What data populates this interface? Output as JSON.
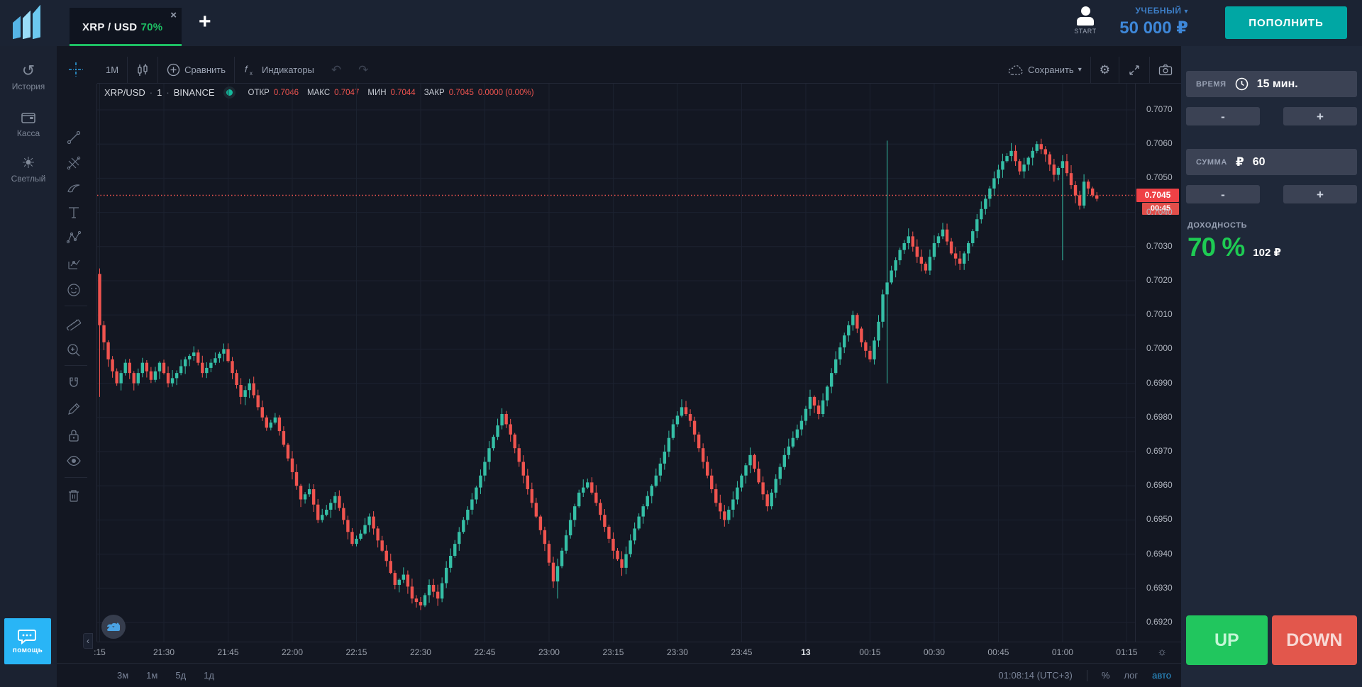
{
  "header": {
    "tab": {
      "symbol": "XRP / USD",
      "payout": "70%"
    },
    "account": {
      "avatar_label": "START",
      "type": "УЧЕБНЫЙ",
      "balance": "50 000 ₽",
      "deposit": "ПОПОЛНИТЬ"
    }
  },
  "icons": {
    "close": "×",
    "add": "+",
    "caret_down": "▾",
    "undo": "↶",
    "redo": "↷",
    "gear": "⚙",
    "sun_axis": "☼",
    "history": "↺",
    "theme_sun": "☀",
    "collapse_left": "‹",
    "dot_sep": "·"
  },
  "sidebar": {
    "items": [
      {
        "label": "История",
        "icon": "history-icon"
      },
      {
        "label": "Касса",
        "icon": "wallet-icon"
      },
      {
        "label": "Светлый",
        "icon": "theme-icon"
      }
    ],
    "help": "помощь"
  },
  "chart": {
    "toolbar": {
      "interval": "1M",
      "compare": "Сравнить",
      "indicators": "Индикаторы",
      "save": "Сохранить"
    },
    "legend": {
      "symbol": "XRP/USD",
      "interval": "1",
      "exchange": "BINANCE",
      "open_label": "ОТКР",
      "open": "0.7046",
      "high_label": "МАКС",
      "high": "0.7047",
      "low_label": "МИН",
      "low": "0.7044",
      "close_label": "ЗАКР",
      "close": "0.7045",
      "change": "0.0000 (0.00%)"
    },
    "ranges": [
      "3м",
      "1м",
      "5д",
      "1д"
    ],
    "clock": "01:08:14 (UTC+3)",
    "axis_buttons": [
      "%",
      "лог",
      "авто"
    ]
  },
  "trade_panel": {
    "time": {
      "label": "ВРЕМЯ",
      "value": "15 мин."
    },
    "amount": {
      "label": "СУММА",
      "currency": "₽",
      "value": "60"
    },
    "payout": {
      "label": "ДОХОДНОСТЬ",
      "percent": "70 %",
      "profit": "102 ₽"
    },
    "minus": "-",
    "plus": "+",
    "up": "UP",
    "down": "DOWN"
  },
  "chart_data": {
    "type": "candlestick",
    "symbol": "XRP/USD",
    "exchange": "BINANCE",
    "interval_minutes": 1,
    "price_axis": {
      "top": 0.707,
      "bottom": 0.692,
      "step": 0.001
    },
    "price_ticks": [
      "0.7070",
      "0.7060",
      "0.7050",
      "0.7040",
      "0.7030",
      "0.7020",
      "0.7010",
      "0.7000",
      "0.6990",
      "0.6980",
      "0.6970",
      "0.6960",
      "0.6950",
      "0.6940",
      "0.6930",
      "0.6920"
    ],
    "time_ticks": [
      {
        "m": 0,
        "label": ":15"
      },
      {
        "m": 15,
        "label": "21:30"
      },
      {
        "m": 30,
        "label": "21:45"
      },
      {
        "m": 45,
        "label": "22:00"
      },
      {
        "m": 60,
        "label": "22:15"
      },
      {
        "m": 75,
        "label": "22:30"
      },
      {
        "m": 90,
        "label": "22:45"
      },
      {
        "m": 105,
        "label": "23:00"
      },
      {
        "m": 120,
        "label": "23:15"
      },
      {
        "m": 135,
        "label": "23:30"
      },
      {
        "m": 150,
        "label": "23:45"
      },
      {
        "m": 165,
        "label": "13",
        "emphasis": true
      },
      {
        "m": 180,
        "label": "00:15"
      },
      {
        "m": 195,
        "label": "00:30"
      },
      {
        "m": 210,
        "label": "00:45"
      },
      {
        "m": 225,
        "label": "01:00"
      },
      {
        "m": 240,
        "label": "01:15"
      }
    ],
    "current_price": 0.7045,
    "current_price_label": "0.7045",
    "countdown": "00:45",
    "candle_count": 234,
    "anchors": [
      [
        0,
        0.7022
      ],
      [
        1,
        0.7007
      ],
      [
        3,
        0.6997
      ],
      [
        5,
        0.699
      ],
      [
        7,
        0.6996
      ],
      [
        9,
        0.699
      ],
      [
        11,
        0.6996
      ],
      [
        13,
        0.6991
      ],
      [
        15,
        0.6996
      ],
      [
        17,
        0.699
      ],
      [
        19,
        0.6993
      ],
      [
        21,
        0.6997
      ],
      [
        23,
        0.6999
      ],
      [
        25,
        0.6993
      ],
      [
        27,
        0.6996
      ],
      [
        30,
        0.7
      ],
      [
        32,
        0.6993
      ],
      [
        34,
        0.6986
      ],
      [
        36,
        0.699
      ],
      [
        38,
        0.6983
      ],
      [
        40,
        0.6977
      ],
      [
        42,
        0.698
      ],
      [
        44,
        0.6972
      ],
      [
        46,
        0.6964
      ],
      [
        48,
        0.6956
      ],
      [
        50,
        0.6959
      ],
      [
        52,
        0.695
      ],
      [
        54,
        0.6953
      ],
      [
        56,
        0.6957
      ],
      [
        58,
        0.695
      ],
      [
        60,
        0.6943
      ],
      [
        62,
        0.6946
      ],
      [
        64,
        0.6951
      ],
      [
        66,
        0.6944
      ],
      [
        68,
        0.6938
      ],
      [
        70,
        0.6931
      ],
      [
        72,
        0.6934
      ],
      [
        74,
        0.6927
      ],
      [
        76,
        0.6925
      ],
      [
        78,
        0.6931
      ],
      [
        80,
        0.6927
      ],
      [
        82,
        0.6936
      ],
      [
        84,
        0.6943
      ],
      [
        86,
        0.695
      ],
      [
        88,
        0.6956
      ],
      [
        90,
        0.6963
      ],
      [
        92,
        0.6971
      ],
      [
        95,
        0.6981
      ],
      [
        97,
        0.6975
      ],
      [
        99,
        0.6967
      ],
      [
        101,
        0.6959
      ],
      [
        103,
        0.6951
      ],
      [
        105,
        0.6943
      ],
      [
        107,
        0.6932
      ],
      [
        109,
        0.6941
      ],
      [
        111,
        0.695
      ],
      [
        113,
        0.6958
      ],
      [
        115,
        0.6961
      ],
      [
        117,
        0.6955
      ],
      [
        119,
        0.6948
      ],
      [
        121,
        0.6941
      ],
      [
        123,
        0.6936
      ],
      [
        125,
        0.6944
      ],
      [
        127,
        0.6951
      ],
      [
        129,
        0.6957
      ],
      [
        131,
        0.6963
      ],
      [
        133,
        0.697
      ],
      [
        135,
        0.6978
      ],
      [
        137,
        0.6983
      ],
      [
        139,
        0.6979
      ],
      [
        141,
        0.6971
      ],
      [
        143,
        0.6963
      ],
      [
        145,
        0.6955
      ],
      [
        147,
        0.695
      ],
      [
        149,
        0.6956
      ],
      [
        151,
        0.6963
      ],
      [
        153,
        0.6969
      ],
      [
        155,
        0.6961
      ],
      [
        157,
        0.6954
      ],
      [
        159,
        0.6962
      ],
      [
        161,
        0.6969
      ],
      [
        163,
        0.6974
      ],
      [
        165,
        0.6979
      ],
      [
        167,
        0.6986
      ],
      [
        169,
        0.6981
      ],
      [
        171,
        0.6989
      ],
      [
        173,
        0.6997
      ],
      [
        175,
        0.7004
      ],
      [
        177,
        0.701
      ],
      [
        179,
        0.7002
      ],
      [
        181,
        0.6997
      ],
      [
        183,
        0.7008
      ],
      [
        184,
        0.7016
      ],
      [
        186,
        0.7023
      ],
      [
        188,
        0.7029
      ],
      [
        190,
        0.7033
      ],
      [
        192,
        0.7027
      ],
      [
        194,
        0.7023
      ],
      [
        196,
        0.7031
      ],
      [
        198,
        0.7035
      ],
      [
        200,
        0.7028
      ],
      [
        202,
        0.7025
      ],
      [
        204,
        0.7031
      ],
      [
        206,
        0.7038
      ],
      [
        208,
        0.7044
      ],
      [
        210,
        0.705
      ],
      [
        212,
        0.7055
      ],
      [
        214,
        0.7058
      ],
      [
        216,
        0.7052
      ],
      [
        218,
        0.7056
      ],
      [
        220,
        0.706
      ],
      [
        222,
        0.7057
      ],
      [
        224,
        0.7051
      ],
      [
        226,
        0.7055
      ],
      [
        228,
        0.7048
      ],
      [
        230,
        0.7042
      ],
      [
        231,
        0.7049
      ],
      [
        233,
        0.7045
      ],
      [
        234,
        0.7044
      ]
    ],
    "specials": [
      {
        "m": 0,
        "low": 0.6986
      },
      {
        "m": 107,
        "low": 0.6927
      },
      {
        "m": 184,
        "high": 0.7061,
        "low": 0.699
      },
      {
        "m": 225,
        "low": 0.7026
      }
    ]
  },
  "colors": {
    "background": "#131722",
    "topbar": "#1b2333",
    "panel": "#1f2839",
    "field": "#3b4254",
    "candle_up": "#35bfa6",
    "candle_down": "#f0544f",
    "price_line": "#f0544f",
    "price_flag": "#ef4146",
    "tab_underline": "#1dbf63",
    "payout_green": "#1ecb53",
    "up_button": "#21c65e",
    "down_button": "#e2574c",
    "deposit_teal": "#00a7a4",
    "balance_blue": "#3e87d8",
    "help_blue": "#29b5f6",
    "auto_blue": "#2d9cdb"
  }
}
